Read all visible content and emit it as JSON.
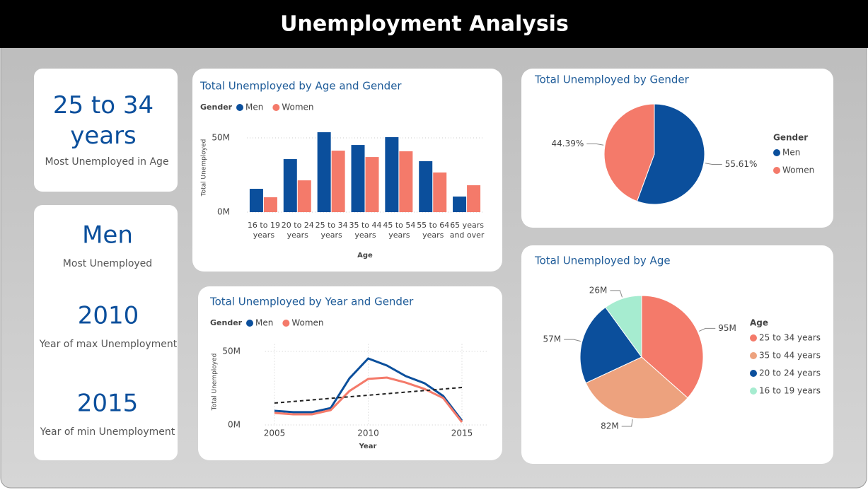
{
  "header": {
    "title": "Unemployment Analysis"
  },
  "cards": [
    {
      "value": "25 to 34 years",
      "label": "Most Unemployed in Age"
    },
    {
      "value": "Men",
      "label": "Most Unemployed"
    },
    {
      "value": "2010",
      "label": "Year of max Unemployment"
    },
    {
      "value": "2015",
      "label": "Year of min Unemployment"
    }
  ],
  "chart_data": [
    {
      "type": "bar",
      "title": "Total Unemployed by Age and Gender",
      "legend_title": "Gender",
      "x_label": "Age",
      "y_label": "Total Unemployed",
      "categories": [
        "16 to 19 years",
        "20 to 24 years",
        "25 to 34 years",
        "35 to 44 years",
        "45 to 54 years",
        "55 to 64 years",
        "65 years and over"
      ],
      "series": [
        {
          "name": "Men",
          "color": "#0b4f9c",
          "values": [
            15.7,
            35.7,
            53.8,
            45.2,
            50.5,
            34.3,
            10.5
          ]
        },
        {
          "name": "Women",
          "color": "#f47a6a",
          "values": [
            10,
            21.4,
            41.4,
            37.1,
            41,
            26.7,
            18.1
          ]
        }
      ],
      "ylim": [
        0,
        57
      ],
      "yticks": [
        {
          "value": 0,
          "label": "0M"
        },
        {
          "value": 50,
          "label": "50M"
        }
      ],
      "grid": true
    },
    {
      "type": "line",
      "title": "Total Unemployed by Year and Gender",
      "legend_title": "Gender",
      "x_label": "Year",
      "y_label": "Total Unemployed",
      "x": [
        2005,
        2006,
        2007,
        2008,
        2009,
        2010,
        2011,
        2012,
        2013,
        2014,
        2015
      ],
      "series": [
        {
          "name": "Men",
          "color": "#0b4f9c",
          "values": [
            9.6,
            8.7,
            8.7,
            11.5,
            31.7,
            45.2,
            40.4,
            33.2,
            28.4,
            19.7,
            2.9
          ]
        },
        {
          "name": "Women",
          "color": "#f47a6a",
          "values": [
            8.2,
            7.2,
            7.2,
            10.1,
            23.1,
            31.3,
            32.2,
            28.8,
            24.5,
            18.3,
            1.9
          ]
        }
      ],
      "trendline": [
        14.9,
        25.5
      ],
      "xlim": [
        2004.5,
        2015.5
      ],
      "xticks": [
        2005,
        2010,
        2015
      ],
      "ylim": [
        0,
        55
      ],
      "yticks": [
        {
          "value": 0,
          "label": "0M"
        },
        {
          "value": 50,
          "label": "50M"
        }
      ],
      "grid": true
    },
    {
      "type": "pie",
      "title": "Total Unemployed by Gender",
      "legend_title": "Gender",
      "categories": [
        "Men",
        "Women"
      ],
      "values": [
        55.61,
        44.39
      ],
      "value_labels": [
        "55.61%",
        "44.39%"
      ],
      "colors": [
        "#0b4f9c",
        "#f47a6a"
      ]
    },
    {
      "type": "pie",
      "title": "Total Unemployed by Age",
      "legend_title": "Age",
      "categories": [
        "25 to 34 years",
        "35 to 44 years",
        "20 to 24 years",
        "16 to 19 years"
      ],
      "values": [
        95,
        82,
        57,
        26
      ],
      "value_labels": [
        "95M",
        "82M",
        "57M",
        "26M"
      ],
      "colors": [
        "#f47a6a",
        "#eda27e",
        "#0b4f9c",
        "#a6ecd0"
      ]
    }
  ]
}
